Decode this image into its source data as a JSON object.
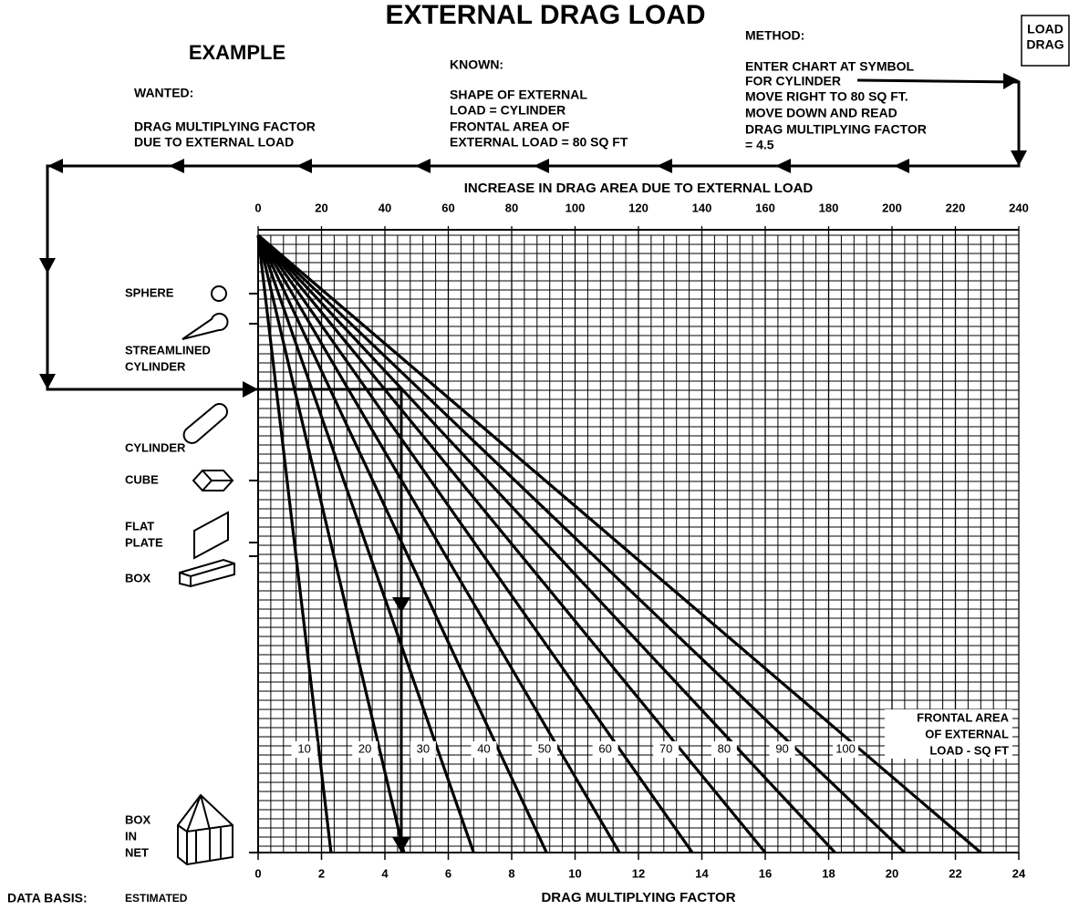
{
  "header": {
    "title": "EXTERNAL DRAG LOAD",
    "badge": [
      "LOAD",
      "DRAG"
    ]
  },
  "example": {
    "title": "EXAMPLE",
    "wanted_label": "WANTED:",
    "wanted": [
      "DRAG MULTIPLYING FACTOR",
      "DUE TO EXTERNAL LOAD"
    ],
    "known_label": "KNOWN:",
    "known": [
      "SHAPE OF EXTERNAL",
      "LOAD = CYLINDER",
      "FRONTAL AREA OF",
      "EXTERNAL LOAD = 80 SQ FT"
    ],
    "method_label": "METHOD:",
    "method": [
      "ENTER CHART AT SYMBOL",
      "FOR CYLINDER",
      "MOVE RIGHT TO 80 SQ FT.",
      "MOVE DOWN AND READ",
      "DRAG MULTIPLYING FACTOR",
      "= 4.5"
    ]
  },
  "chart_data": {
    "type": "nomogram",
    "x2label": "INCREASE IN DRAG AREA DUE TO EXTERNAL LOAD",
    "x2lim": [
      0,
      240
    ],
    "x2ticks": [
      0,
      20,
      40,
      60,
      80,
      100,
      120,
      140,
      160,
      180,
      200,
      220,
      240
    ],
    "xlabel": "DRAG MULTIPLYING FACTOR",
    "xlim": [
      0,
      24
    ],
    "xticks": [
      0,
      2,
      4,
      6,
      8,
      10,
      12,
      14,
      16,
      18,
      20,
      22,
      24
    ],
    "series_title": [
      "FRONTAL AREA",
      "OF EXTERNAL",
      "LOAD - SQ FT"
    ],
    "series": [
      {
        "name": "10",
        "values": [
          2.3
        ]
      },
      {
        "name": "20",
        "values": [
          4.6
        ]
      },
      {
        "name": "30",
        "values": [
          6.8
        ]
      },
      {
        "name": "40",
        "values": [
          9.1
        ]
      },
      {
        "name": "50",
        "values": [
          11.4
        ]
      },
      {
        "name": "60",
        "values": [
          13.7
        ]
      },
      {
        "name": "70",
        "values": [
          16.0
        ]
      },
      {
        "name": "80",
        "values": [
          18.2
        ]
      },
      {
        "name": "90",
        "values": [
          20.4
        ]
      },
      {
        "name": "100",
        "values": [
          22.8
        ]
      }
    ],
    "grid": true,
    "shapes": [
      [
        "SPHERE"
      ],
      [
        "STREAMLINED",
        "CYLINDER"
      ],
      [
        "CYLINDER"
      ],
      [
        "CUBE"
      ],
      [
        "FLAT",
        "PLATE"
      ],
      [
        "BOX"
      ],
      [
        "BOX",
        "IN",
        "NET"
      ]
    ]
  },
  "footer": {
    "label": "DATA BASIS:",
    "value": "ESTIMATED"
  }
}
